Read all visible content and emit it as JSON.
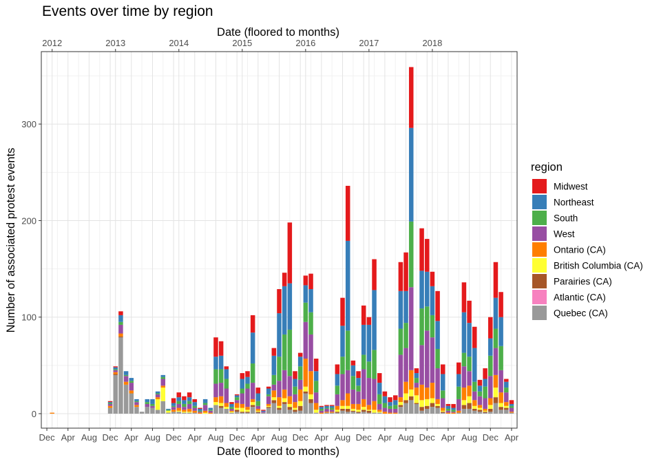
{
  "chart_data": {
    "type": "bar",
    "stacked": true,
    "title": "Events over time by region",
    "xlabel_top": "Date (floored to months)",
    "xlabel_bottom": "Date (floored to months)",
    "ylabel": "Number of associated protest events",
    "ylim": [
      -15,
      375
    ],
    "yticks": [
      0,
      100,
      200,
      300
    ],
    "x_start": "2011-12",
    "x_end": "2019-04",
    "top_ticks": [
      {
        "label": "2012",
        "date": "2012-01"
      },
      {
        "label": "2013",
        "date": "2013-01"
      },
      {
        "label": "2014",
        "date": "2014-01"
      },
      {
        "label": "2015",
        "date": "2015-01"
      },
      {
        "label": "2016",
        "date": "2016-01"
      },
      {
        "label": "2017",
        "date": "2017-01"
      },
      {
        "label": "2018",
        "date": "2018-01"
      }
    ],
    "bottom_ticks": [
      {
        "label": "Dec",
        "date": "2011-12"
      },
      {
        "label": "Apr",
        "date": "2012-04"
      },
      {
        "label": "Aug",
        "date": "2012-08"
      },
      {
        "label": "Dec",
        "date": "2012-12"
      },
      {
        "label": "Apr",
        "date": "2013-04"
      },
      {
        "label": "Aug",
        "date": "2013-08"
      },
      {
        "label": "Dec",
        "date": "2013-12"
      },
      {
        "label": "Apr",
        "date": "2014-04"
      },
      {
        "label": "Aug",
        "date": "2014-08"
      },
      {
        "label": "Dec",
        "date": "2014-12"
      },
      {
        "label": "Apr",
        "date": "2015-04"
      },
      {
        "label": "Aug",
        "date": "2015-08"
      },
      {
        "label": "Dec",
        "date": "2015-12"
      },
      {
        "label": "Apr",
        "date": "2016-04"
      },
      {
        "label": "Aug",
        "date": "2016-08"
      },
      {
        "label": "Dec",
        "date": "2016-12"
      },
      {
        "label": "Apr",
        "date": "2017-04"
      },
      {
        "label": "Aug",
        "date": "2017-08"
      },
      {
        "label": "Dec",
        "date": "2017-12"
      },
      {
        "label": "Apr",
        "date": "2018-04"
      },
      {
        "label": "Aug",
        "date": "2018-08"
      },
      {
        "label": "Dec",
        "date": "2018-12"
      },
      {
        "label": "Apr",
        "date": "2019-04"
      }
    ],
    "grid": true,
    "legend_position": "right",
    "legend_title": "region",
    "series": [
      {
        "name": "Midwest",
        "color": "#e41a1c"
      },
      {
        "name": "Northeast",
        "color": "#377eb8"
      },
      {
        "name": "South",
        "color": "#4daf4a"
      },
      {
        "name": "West",
        "color": "#984ea3"
      },
      {
        "name": "Ontario (CA)",
        "color": "#ff7f00"
      },
      {
        "name": "British Columbia (CA)",
        "color": "#ffff33"
      },
      {
        "name": "Parairies (CA)",
        "color": "#a65628"
      },
      {
        "name": "Atlantic (CA)",
        "color": "#f781bf"
      },
      {
        "name": "Quebec (CA)",
        "color": "#999999"
      }
    ],
    "bars": [
      {
        "date": "2012-01",
        "values": [
          0,
          0,
          0,
          0,
          1,
          0,
          0,
          0,
          0
        ]
      },
      {
        "date": "2012-12",
        "values": [
          1,
          1,
          1,
          2,
          2,
          0,
          0,
          0,
          6
        ]
      },
      {
        "date": "2013-01",
        "values": [
          1,
          2,
          1,
          2,
          2,
          0,
          1,
          0,
          40
        ]
      },
      {
        "date": "2013-02",
        "values": [
          4,
          7,
          3,
          9,
          3,
          0,
          1,
          0,
          79
        ]
      },
      {
        "date": "2013-03",
        "values": [
          0,
          4,
          1,
          6,
          3,
          0,
          0,
          0,
          30
        ]
      },
      {
        "date": "2013-04",
        "values": [
          0,
          3,
          2,
          8,
          3,
          0,
          0,
          0,
          21
        ]
      },
      {
        "date": "2013-05",
        "values": [
          0,
          2,
          1,
          3,
          2,
          0,
          0,
          0,
          7
        ]
      },
      {
        "date": "2013-06",
        "values": [
          0,
          0,
          0,
          0,
          0,
          0,
          0,
          0,
          2
        ]
      },
      {
        "date": "2013-07",
        "values": [
          0,
          3,
          2,
          3,
          0,
          0,
          0,
          0,
          7
        ]
      },
      {
        "date": "2013-08",
        "values": [
          0,
          5,
          2,
          2,
          0,
          0,
          0,
          0,
          6
        ]
      },
      {
        "date": "2013-09",
        "values": [
          0,
          2,
          1,
          3,
          2,
          11,
          0,
          0,
          4
        ]
      },
      {
        "date": "2013-10",
        "values": [
          0,
          2,
          2,
          7,
          2,
          14,
          0,
          0,
          13
        ]
      },
      {
        "date": "2013-11",
        "values": [
          0,
          1,
          1,
          0,
          0,
          2,
          0,
          0,
          1
        ]
      },
      {
        "date": "2013-12",
        "values": [
          5,
          3,
          1,
          3,
          2,
          0,
          0,
          0,
          2
        ]
      },
      {
        "date": "2014-01",
        "values": [
          5,
          4,
          3,
          4,
          3,
          1,
          0,
          0,
          2
        ]
      },
      {
        "date": "2014-02",
        "values": [
          4,
          4,
          3,
          3,
          2,
          1,
          0,
          0,
          1
        ]
      },
      {
        "date": "2014-03",
        "values": [
          5,
          4,
          3,
          5,
          3,
          1,
          0,
          0,
          1
        ]
      },
      {
        "date": "2014-04",
        "values": [
          3,
          4,
          2,
          3,
          2,
          0,
          0,
          0,
          1
        ]
      },
      {
        "date": "2014-05",
        "values": [
          1,
          2,
          1,
          1,
          1,
          0,
          0,
          0,
          0
        ]
      },
      {
        "date": "2014-06",
        "values": [
          0,
          4,
          2,
          6,
          2,
          1,
          0,
          0,
          0
        ]
      },
      {
        "date": "2014-07",
        "values": [
          0,
          2,
          1,
          2,
          1,
          0,
          0,
          0,
          0
        ]
      },
      {
        "date": "2014-08",
        "values": [
          20,
          13,
          15,
          14,
          5,
          3,
          0,
          0,
          9
        ]
      },
      {
        "date": "2014-09",
        "values": [
          15,
          14,
          14,
          14,
          7,
          3,
          2,
          0,
          6
        ]
      },
      {
        "date": "2014-10",
        "values": [
          3,
          10,
          10,
          15,
          4,
          2,
          0,
          0,
          5
        ]
      },
      {
        "date": "2014-11",
        "values": [
          2,
          3,
          2,
          2,
          1,
          1,
          0,
          0,
          1
        ]
      },
      {
        "date": "2014-12",
        "values": [
          1,
          2,
          3,
          3,
          5,
          2,
          2,
          0,
          2
        ]
      },
      {
        "date": "2015-01",
        "values": [
          6,
          10,
          5,
          11,
          4,
          4,
          1,
          0,
          1
        ]
      },
      {
        "date": "2015-02",
        "values": [
          6,
          7,
          5,
          19,
          3,
          2,
          1,
          0,
          1
        ]
      },
      {
        "date": "2015-03",
        "values": [
          18,
          32,
          20,
          17,
          3,
          3,
          2,
          0,
          7
        ]
      },
      {
        "date": "2015-04",
        "values": [
          6,
          8,
          5,
          3,
          2,
          1,
          1,
          0,
          1
        ]
      },
      {
        "date": "2015-05",
        "values": [
          1,
          1,
          0,
          1,
          0,
          0,
          0,
          0,
          1
        ]
      },
      {
        "date": "2015-06",
        "values": [
          2,
          6,
          2,
          8,
          2,
          1,
          1,
          0,
          6
        ]
      },
      {
        "date": "2015-07",
        "values": [
          8,
          20,
          10,
          6,
          7,
          3,
          3,
          0,
          11
        ]
      },
      {
        "date": "2015-08",
        "values": [
          25,
          45,
          25,
          17,
          9,
          2,
          2,
          0,
          4
        ]
      },
      {
        "date": "2015-09",
        "values": [
          14,
          50,
          37,
          20,
          9,
          4,
          2,
          0,
          10
        ]
      },
      {
        "date": "2015-10",
        "values": [
          63,
          48,
          48,
          21,
          8,
          3,
          3,
          0,
          4
        ]
      },
      {
        "date": "2015-11",
        "values": [
          8,
          8,
          8,
          8,
          6,
          2,
          2,
          0,
          2
        ]
      },
      {
        "date": "2015-12",
        "values": [
          4,
          10,
          14,
          10,
          12,
          5,
          5,
          0,
          3
        ]
      },
      {
        "date": "2016-01",
        "values": [
          10,
          18,
          20,
          38,
          29,
          5,
          2,
          0,
          21
        ]
      },
      {
        "date": "2016-02",
        "values": [
          16,
          24,
          23,
          38,
          24,
          5,
          4,
          0,
          11
        ]
      },
      {
        "date": "2016-03",
        "values": [
          13,
          10,
          12,
          11,
          7,
          3,
          0,
          0,
          1
        ]
      },
      {
        "date": "2016-04",
        "values": [
          1,
          2,
          2,
          2,
          1,
          0,
          0,
          0,
          0
        ]
      },
      {
        "date": "2016-05",
        "values": [
          1,
          2,
          1,
          3,
          1,
          0,
          0,
          0,
          1
        ]
      },
      {
        "date": "2016-06",
        "values": [
          1,
          2,
          2,
          2,
          1,
          0,
          0,
          0,
          1
        ]
      },
      {
        "date": "2016-07",
        "values": [
          10,
          12,
          9,
          12,
          4,
          2,
          1,
          0,
          1
        ]
      },
      {
        "date": "2016-08",
        "values": [
          29,
          32,
          18,
          27,
          6,
          3,
          2,
          0,
          3
        ]
      },
      {
        "date": "2016-09",
        "values": [
          57,
          93,
          41,
          24,
          13,
          3,
          3,
          0,
          2
        ]
      },
      {
        "date": "2016-10",
        "values": [
          5,
          11,
          14,
          15,
          5,
          2,
          1,
          0,
          2
        ]
      },
      {
        "date": "2016-11",
        "values": [
          7,
          8,
          6,
          13,
          6,
          2,
          1,
          0,
          1
        ]
      },
      {
        "date": "2016-12",
        "values": [
          20,
          31,
          15,
          31,
          8,
          3,
          2,
          0,
          2
        ]
      },
      {
        "date": "2017-01",
        "values": [
          8,
          38,
          17,
          28,
          5,
          1,
          2,
          0,
          1
        ]
      },
      {
        "date": "2017-02",
        "values": [
          32,
          62,
          30,
          23,
          9,
          3,
          0,
          0,
          1
        ]
      },
      {
        "date": "2017-03",
        "values": [
          10,
          12,
          10,
          6,
          2,
          1,
          0,
          0,
          1
        ]
      },
      {
        "date": "2017-04",
        "values": [
          5,
          7,
          5,
          4,
          2,
          0,
          0,
          0,
          0
        ]
      },
      {
        "date": "2017-05",
        "values": [
          5,
          4,
          3,
          4,
          1,
          0,
          0,
          0,
          0
        ]
      },
      {
        "date": "2017-06",
        "values": [
          5,
          5,
          4,
          4,
          1,
          0,
          0,
          0,
          0
        ]
      },
      {
        "date": "2017-07",
        "values": [
          30,
          39,
          27,
          44,
          5,
          3,
          2,
          0,
          7
        ]
      },
      {
        "date": "2017-08",
        "values": [
          40,
          33,
          26,
          35,
          12,
          7,
          3,
          0,
          11
        ]
      },
      {
        "date": "2017-09",
        "values": [
          63,
          97,
          68,
          86,
          20,
          7,
          4,
          0,
          14
        ]
      },
      {
        "date": "2017-10",
        "values": [
          5,
          5,
          5,
          5,
          8,
          8,
          1,
          0,
          10
        ]
      },
      {
        "date": "2017-11",
        "values": [
          44,
          39,
          38,
          41,
          16,
          7,
          4,
          0,
          3
        ]
      },
      {
        "date": "2017-12",
        "values": [
          34,
          36,
          25,
          59,
          12,
          7,
          3,
          0,
          5
        ]
      },
      {
        "date": "2018-01",
        "values": [
          15,
          30,
          23,
          47,
          16,
          5,
          4,
          0,
          7
        ]
      },
      {
        "date": "2018-02",
        "values": [
          31,
          29,
          20,
          32,
          5,
          2,
          2,
          0,
          6
        ]
      },
      {
        "date": "2018-03",
        "values": [
          10,
          17,
          8,
          10,
          3,
          1,
          1,
          0,
          1
        ]
      },
      {
        "date": "2018-04",
        "values": [
          2,
          3,
          2,
          2,
          1,
          0,
          0,
          0,
          0
        ]
      },
      {
        "date": "2018-05",
        "values": [
          4,
          2,
          2,
          1,
          1,
          0,
          0,
          0,
          0
        ]
      },
      {
        "date": "2018-06",
        "values": [
          12,
          13,
          13,
          12,
          2,
          0,
          0,
          0,
          1
        ]
      },
      {
        "date": "2018-07",
        "values": [
          31,
          42,
          14,
          22,
          13,
          5,
          4,
          0,
          5
        ]
      },
      {
        "date": "2018-08",
        "values": [
          23,
          35,
          15,
          15,
          11,
          7,
          6,
          0,
          5
        ]
      },
      {
        "date": "2018-09",
        "values": [
          22,
          35,
          10,
          9,
          6,
          3,
          2,
          0,
          3
        ]
      },
      {
        "date": "2018-10",
        "values": [
          6,
          6,
          5,
          9,
          3,
          2,
          2,
          0,
          2
        ]
      },
      {
        "date": "2018-11",
        "values": [
          11,
          8,
          12,
          11,
          2,
          1,
          1,
          0,
          1
        ]
      },
      {
        "date": "2018-12",
        "values": [
          22,
          18,
          21,
          23,
          7,
          4,
          3,
          0,
          2
        ]
      },
      {
        "date": "2019-01",
        "values": [
          37,
          32,
          20,
          28,
          13,
          10,
          6,
          0,
          11
        ]
      },
      {
        "date": "2019-02",
        "values": [
          26,
          30,
          25,
          23,
          11,
          4,
          3,
          0,
          4
        ]
      },
      {
        "date": "2019-03",
        "values": [
          3,
          6,
          5,
          10,
          4,
          2,
          2,
          0,
          4
        ]
      },
      {
        "date": "2019-04",
        "values": [
          4,
          2,
          2,
          4,
          1,
          0,
          0,
          0,
          1
        ]
      }
    ]
  }
}
